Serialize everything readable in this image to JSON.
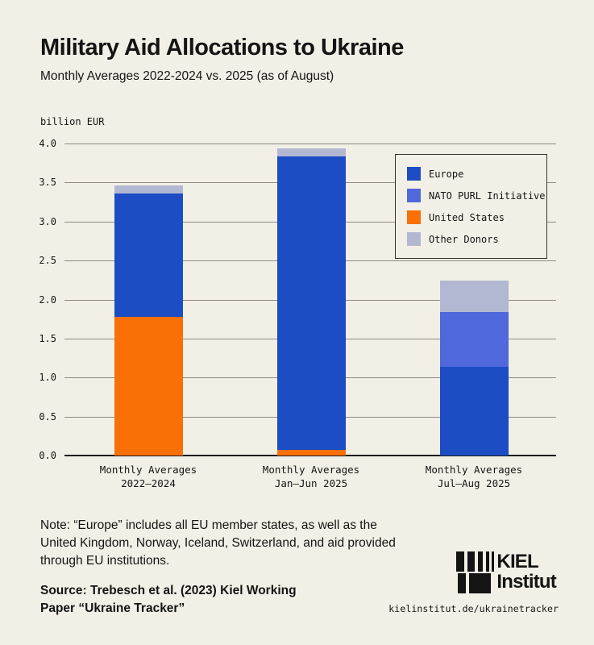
{
  "page": {
    "background": "#f2f0e6",
    "text_color": "#141414",
    "gridline_color": "#8f8a7d"
  },
  "header": {
    "title": "Military Aid Allocations to Ukraine",
    "subtitle": "Monthly Averages 2022-2024 vs. 2025 (as of August)"
  },
  "chart_data": {
    "type": "bar",
    "stacked": true,
    "title": "Military Aid Allocations to Ukraine",
    "ylabel": "billion EUR",
    "xlabel": "",
    "ylim": [
      0,
      4.0
    ],
    "ytick_step": 0.5,
    "grid": true,
    "categories": [
      [
        "Monthly Averages",
        "2022–2024"
      ],
      [
        "Monthly Averages",
        "Jan–Jun 2025"
      ],
      [
        "Monthly Averages",
        "Jul–Aug 2025"
      ]
    ],
    "series": [
      {
        "name": "United States",
        "color": "#f97007",
        "values": [
          1.78,
          0.07,
          0
        ]
      },
      {
        "name": "Europe",
        "color": "#1c4dc4",
        "values": [
          1.58,
          3.77,
          1.14
        ]
      },
      {
        "name": "NATO PURL Initiative",
        "color": "#4f68dc",
        "values": [
          0,
          0,
          0.7
        ]
      },
      {
        "name": "Other Donors",
        "color": "#b2b8d2",
        "values": [
          0.1,
          0.1,
          0.4
        ]
      }
    ],
    "totals": [
      3.46,
      3.94,
      2.24
    ],
    "legend": {
      "position": "top-right",
      "order": [
        "Europe",
        "NATO PURL Initiative",
        "United States",
        "Other Donors"
      ]
    }
  },
  "footer": {
    "note_lines": [
      "Note: “Europe” includes all EU member states, as well as the",
      "United Kingdom, Norway, Iceland, Switzerland, and aid provided",
      "through EU institutions."
    ],
    "source_lines": [
      "Source: Trebesch et al. (2023) Kiel Working",
      "Paper “Ukraine Tracker”"
    ],
    "logo_text_top": "KIEL",
    "logo_text_bottom": "Institut",
    "url": "kielinstitut.de/ukrainetracker"
  }
}
